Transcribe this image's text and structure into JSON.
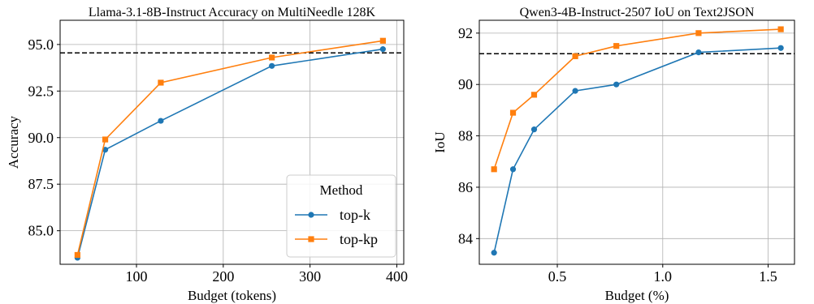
{
  "chart_data": [
    {
      "type": "line",
      "title": "Llama-3.1-8B-Instruct Accuracy on MultiNeedle 128K",
      "xlabel": "Budget (tokens)",
      "ylabel": "Accuracy",
      "xlim": [
        12,
        408
      ],
      "ylim": [
        83.2,
        96.3
      ],
      "xticks": [
        100,
        200,
        300,
        400
      ],
      "yticks": [
        85.0,
        87.5,
        90.0,
        92.5,
        95.0
      ],
      "xtick_labels": [
        "100",
        "200",
        "300",
        "400"
      ],
      "ytick_labels": [
        "85.0",
        "87.5",
        "90.0",
        "92.5",
        "95.0"
      ],
      "grid": true,
      "reference_line": 94.55,
      "legend": {
        "title": "Method",
        "placement": "lower-right",
        "entries": [
          "top-k",
          "top-kp"
        ]
      },
      "series": [
        {
          "name": "top-k",
          "color": "#1f77b4",
          "marker": "circle",
          "x": [
            32,
            64,
            128,
            256,
            384
          ],
          "y": [
            83.55,
            89.35,
            90.9,
            93.85,
            94.75
          ]
        },
        {
          "name": "top-kp",
          "color": "#ff7f0e",
          "marker": "square",
          "x": [
            32,
            64,
            128,
            256,
            384
          ],
          "y": [
            83.7,
            89.9,
            92.95,
            94.3,
            95.2
          ]
        }
      ]
    },
    {
      "type": "line",
      "title": "Qwen3-4B-Instruct-2507 IoU on Text2JSON",
      "xlabel": "Budget (%)",
      "ylabel": "IoU",
      "xlim": [
        0.13,
        1.625
      ],
      "ylim": [
        83.0,
        92.5
      ],
      "xticks": [
        0.5,
        1.0,
        1.5
      ],
      "yticks": [
        84,
        86,
        88,
        90,
        92
      ],
      "xtick_labels": [
        "0.5",
        "1.0",
        "1.5"
      ],
      "ytick_labels": [
        "84",
        "86",
        "88",
        "90",
        "92"
      ],
      "grid": true,
      "reference_line": 91.2,
      "series": [
        {
          "name": "top-k",
          "color": "#1f77b4",
          "marker": "circle",
          "x": [
            0.2,
            0.29,
            0.39,
            0.585,
            0.78,
            1.17,
            1.56
          ],
          "y": [
            83.45,
            86.7,
            88.25,
            89.75,
            90.0,
            91.25,
            91.42
          ]
        },
        {
          "name": "top-kp",
          "color": "#ff7f0e",
          "marker": "square",
          "x": [
            0.2,
            0.29,
            0.39,
            0.585,
            0.78,
            1.17,
            1.56
          ],
          "y": [
            86.7,
            88.9,
            89.6,
            91.1,
            91.5,
            92.0,
            92.15
          ]
        }
      ]
    }
  ]
}
